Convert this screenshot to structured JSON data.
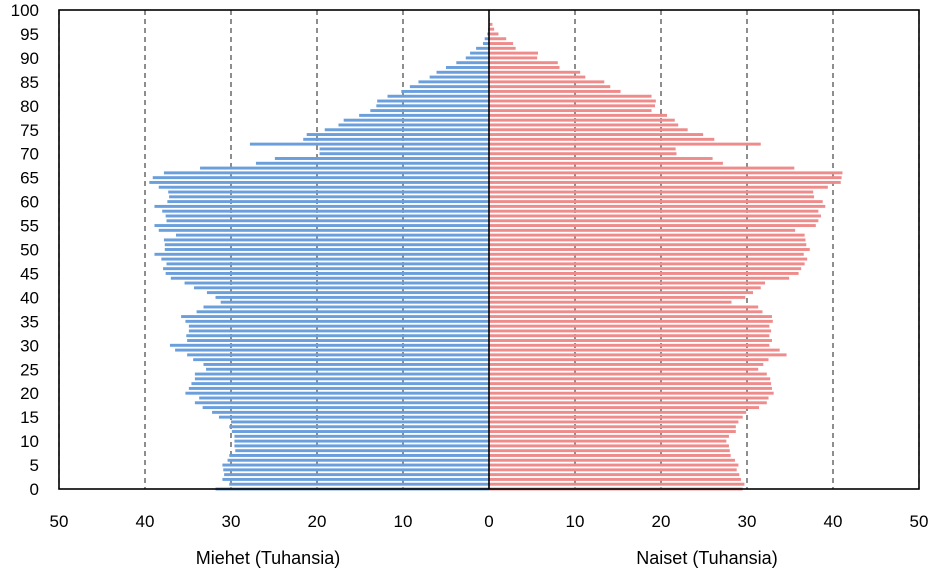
{
  "chart_data": {
    "type": "bar",
    "orientation": "horizontal",
    "subtype": "population-pyramid",
    "ages": [
      0,
      1,
      2,
      3,
      4,
      5,
      6,
      7,
      8,
      9,
      10,
      11,
      12,
      13,
      14,
      15,
      16,
      17,
      18,
      19,
      20,
      21,
      22,
      23,
      24,
      25,
      26,
      27,
      28,
      29,
      30,
      31,
      32,
      33,
      34,
      35,
      36,
      37,
      38,
      39,
      40,
      41,
      42,
      43,
      44,
      45,
      46,
      47,
      48,
      49,
      50,
      51,
      52,
      53,
      54,
      55,
      56,
      57,
      58,
      59,
      60,
      61,
      62,
      63,
      64,
      65,
      66,
      67,
      68,
      69,
      70,
      71,
      72,
      73,
      74,
      75,
      76,
      77,
      78,
      79,
      80,
      81,
      82,
      83,
      84,
      85,
      86,
      87,
      88,
      89,
      90,
      91,
      92,
      93,
      94,
      95,
      96,
      97,
      98,
      99,
      100
    ],
    "series": [
      {
        "name": "Miehet (Tuhansia)",
        "color": "#6a9fdc",
        "values": [
          31.8,
          30.2,
          31.0,
          30.8,
          30.9,
          31.0,
          30.4,
          30.2,
          29.5,
          29.6,
          29.6,
          29.6,
          29.9,
          30.2,
          30.0,
          31.4,
          32.2,
          33.3,
          34.2,
          33.7,
          35.3,
          34.9,
          34.6,
          34.2,
          34.2,
          32.9,
          33.2,
          34.4,
          35.1,
          36.5,
          37.1,
          35.1,
          35.2,
          34.9,
          34.9,
          35.3,
          35.8,
          34.0,
          33.2,
          31.2,
          31.8,
          32.8,
          34.3,
          35.4,
          37.0,
          37.6,
          37.9,
          37.5,
          38.1,
          38.9,
          37.7,
          37.7,
          37.8,
          36.4,
          38.4,
          38.9,
          37.5,
          37.6,
          38.0,
          38.9,
          37.4,
          37.2,
          37.3,
          38.4,
          39.5,
          39.1,
          37.8,
          33.6,
          27.1,
          24.9,
          19.7,
          19.7,
          27.8,
          21.6,
          21.2,
          19.1,
          17.5,
          16.9,
          15.1,
          13.8,
          13.1,
          13.0,
          11.8,
          10.2,
          9.2,
          8.2,
          6.9,
          6.1,
          5.0,
          3.8,
          2.7,
          2.2,
          1.5,
          0.7,
          0.5,
          0.2,
          0.1,
          0.0,
          0.0,
          0.0,
          0.0
        ]
      },
      {
        "name": "Naiset (Tuhansia)",
        "color": "#ee8c8c",
        "values": [
          29.5,
          29.7,
          29.3,
          29.1,
          28.8,
          29.0,
          28.6,
          28.1,
          28.0,
          27.9,
          27.6,
          27.9,
          28.7,
          28.7,
          29.0,
          29.5,
          29.9,
          31.4,
          32.3,
          32.5,
          33.1,
          32.9,
          32.8,
          32.7,
          32.3,
          31.3,
          31.9,
          32.5,
          34.6,
          33.8,
          32.6,
          32.9,
          32.6,
          32.8,
          32.6,
          33.0,
          32.9,
          31.8,
          31.3,
          28.2,
          29.8,
          30.7,
          31.6,
          32.1,
          34.9,
          36.0,
          36.3,
          36.7,
          37.0,
          36.6,
          37.3,
          36.9,
          36.8,
          36.7,
          35.6,
          38.0,
          38.3,
          38.6,
          38.3,
          39.1,
          38.8,
          37.8,
          37.7,
          39.4,
          40.9,
          41.0,
          41.1,
          35.5,
          27.2,
          26.0,
          21.8,
          21.7,
          31.6,
          26.2,
          24.9,
          23.1,
          22.0,
          21.6,
          20.7,
          18.9,
          19.3,
          19.4,
          18.9,
          15.3,
          14.1,
          13.4,
          11.2,
          10.6,
          8.2,
          8.0,
          5.6,
          5.7,
          3.1,
          2.8,
          2.0,
          1.1,
          0.6,
          0.4,
          0.1,
          0.0,
          0.0
        ]
      }
    ],
    "xlabel_left": "Miehet (Tuhansia)",
    "xlabel_right": "Naiset (Tuhansia)",
    "x_ticks": [
      "50",
      "40",
      "30",
      "20",
      "10",
      "0",
      "10",
      "20",
      "30",
      "40",
      "50"
    ],
    "y_ticks": [
      "0",
      "5",
      "10",
      "15",
      "20",
      "25",
      "30",
      "35",
      "40",
      "45",
      "50",
      "55",
      "60",
      "65",
      "70",
      "75",
      "80",
      "85",
      "90",
      "95",
      "100"
    ],
    "xlim": [
      -50,
      50
    ],
    "ylim": [
      0,
      100
    ],
    "grid": "vertical dashed"
  }
}
